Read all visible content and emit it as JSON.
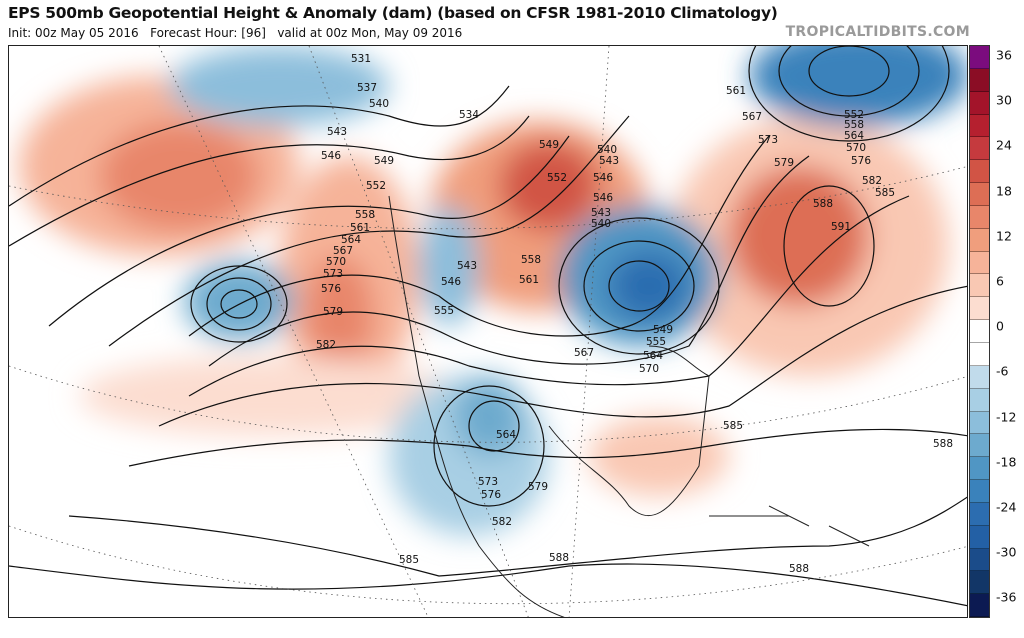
{
  "header": {
    "title": "EPS 500mb Geopotential Height & Anomaly (dam) (based on CFSR 1981-2010 Climatology)",
    "subtitle": "Init: 00z May 05 2016   Forecast Hour: [96]   valid at 00z Mon, May 09 2016",
    "brand": "TROPICALTIDBITS.COM"
  },
  "colorbar": {
    "labels": [
      "36",
      "30",
      "24",
      "18",
      "12",
      "6",
      "0",
      "-6",
      "-12",
      "-18",
      "-24",
      "-30",
      "-36"
    ],
    "colors": [
      "#7b0c7e",
      "#8b0d25",
      "#a3142a",
      "#b5202f",
      "#c53a3e",
      "#d15445",
      "#dd6e55",
      "#e8866a",
      "#f09e7d",
      "#f6b399",
      "#f9c8b3",
      "#fcddd0",
      "#ffffff",
      "#ffffff",
      "#c1dbeb",
      "#a8cfe4",
      "#8cbedb",
      "#6daace",
      "#5096c4",
      "#3a82bb",
      "#2c6db0",
      "#2360a5",
      "#1b4c8a",
      "#123667",
      "#0c1a52"
    ]
  },
  "map": {
    "contour_labels": [
      "531",
      "537",
      "540",
      "534",
      "543",
      "546",
      "549",
      "552",
      "558",
      "561",
      "564",
      "567",
      "570",
      "573",
      "576",
      "579",
      "582",
      "543",
      "546",
      "555",
      "558",
      "561",
      "567",
      "570",
      "564",
      "555",
      "549",
      "564",
      "573",
      "576",
      "579",
      "582",
      "585",
      "588",
      "588",
      "585",
      "588",
      "591",
      "588",
      "585",
      "582",
      "576",
      "570",
      "564",
      "558",
      "552",
      "579",
      "573",
      "567",
      "561",
      "540",
      "543",
      "546",
      "546",
      "543",
      "540",
      "549",
      "552"
    ]
  }
}
